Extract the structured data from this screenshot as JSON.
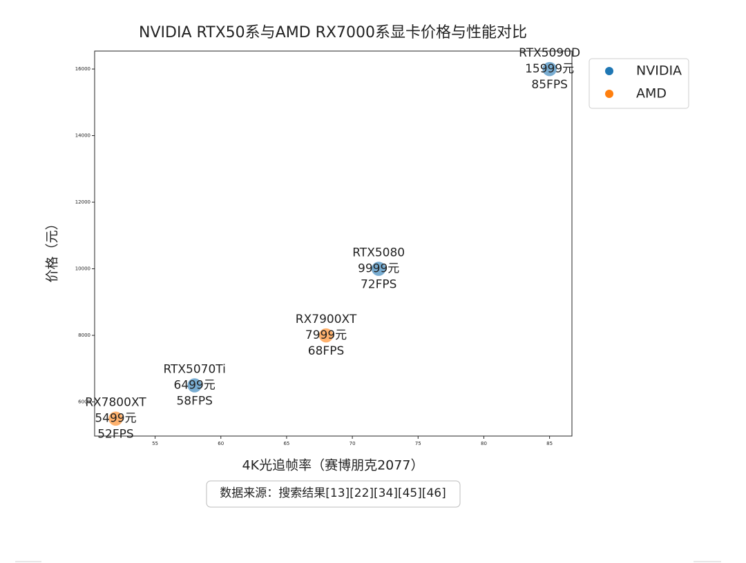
{
  "chart_data": {
    "type": "scatter",
    "title": "NVIDIA RTX50系与AMD RX7000系显卡价格与性能对比",
    "xlabel": "4K光追帧率（赛博朋克2077）",
    "ylabel": "价格（元）",
    "note": "数据来源：搜索结果[13][22][34][45][46]",
    "xlim": [
      50.4,
      86.7
    ],
    "xticks": [
      55,
      60,
      65,
      70,
      75,
      80,
      85
    ],
    "ylim": [
      4975,
      16540
    ],
    "yticks": [
      6000,
      8000,
      10000,
      12000,
      14000,
      16000
    ],
    "legend": "outside upper right",
    "series": [
      {
        "name": "NVIDIA",
        "color": "#1f77b4",
        "x": [
          85,
          72,
          58
        ],
        "values": [
          15999,
          9999,
          6499
        ],
        "point_names": [
          "RTX5090D",
          "RTX5080",
          "RTX5070Ti"
        ],
        "value_labels": [
          "15999元",
          "9999元",
          "6499元"
        ],
        "x_value_labels": [
          "85FPS",
          "72FPS",
          "58FPS"
        ]
      },
      {
        "name": "AMD",
        "color": "#ff7f0e",
        "x": [
          68,
          52
        ],
        "values": [
          7999,
          5499
        ],
        "point_names": [
          "RX7900XT",
          "RX7800XT"
        ],
        "value_labels": [
          "7999元",
          "5499元"
        ],
        "x_value_labels": [
          "68FPS",
          "52FPS"
        ]
      }
    ]
  }
}
